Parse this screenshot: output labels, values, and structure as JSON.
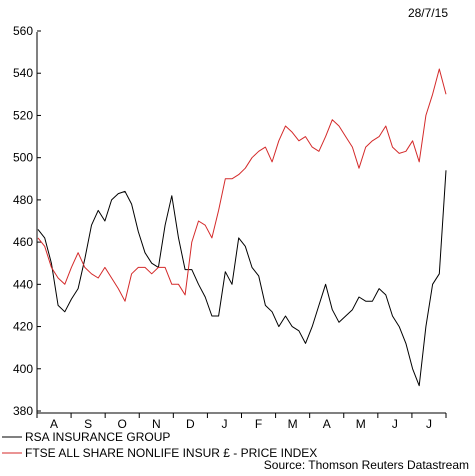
{
  "date_label": "28/7/15",
  "source": "Source: Thomson Reuters Datastream",
  "chart_data": {
    "type": "line",
    "title": "",
    "xlabel": "",
    "ylabel": "",
    "ylim": [
      380,
      560
    ],
    "yticks": [
      380,
      400,
      420,
      440,
      460,
      480,
      500,
      520,
      540,
      560
    ],
    "month_labels": [
      "A",
      "S",
      "O",
      "N",
      "D",
      "J",
      "F",
      "M",
      "A",
      "M",
      "J",
      "J"
    ],
    "x_period": "July 2014 – July 2015 (weekly)",
    "grid": false,
    "legend_position": "bottom",
    "series": [
      {
        "name": "RSA INSURANCE GROUP",
        "color": "#000000",
        "values": [
          466,
          462,
          450,
          430,
          427,
          433,
          438,
          452,
          468,
          475,
          470,
          480,
          483,
          484,
          478,
          465,
          455,
          450,
          448,
          468,
          482,
          462,
          447,
          447,
          440,
          434,
          425,
          425,
          446,
          440,
          462,
          458,
          448,
          444,
          430,
          427,
          420,
          425,
          420,
          418,
          412,
          420,
          430,
          440,
          428,
          422,
          425,
          428,
          434,
          432,
          432,
          438,
          435,
          425,
          420,
          412,
          400,
          392,
          420,
          440,
          445,
          494
        ]
      },
      {
        "name": "FTSE ALL SHARE NONLIFE INSUR £ - PRICE INDEX",
        "color": "#d42a2a",
        "values": [
          462,
          458,
          448,
          443,
          440,
          448,
          455,
          448,
          445,
          443,
          448,
          443,
          438,
          432,
          445,
          448,
          448,
          445,
          448,
          448,
          440,
          440,
          435,
          460,
          470,
          468,
          462,
          475,
          490,
          490,
          492,
          495,
          500,
          503,
          505,
          498,
          508,
          515,
          512,
          508,
          510,
          505,
          503,
          510,
          518,
          515,
          510,
          505,
          495,
          505,
          508,
          510,
          515,
          505,
          502,
          503,
          508,
          498,
          520,
          530,
          542,
          530
        ]
      }
    ]
  }
}
